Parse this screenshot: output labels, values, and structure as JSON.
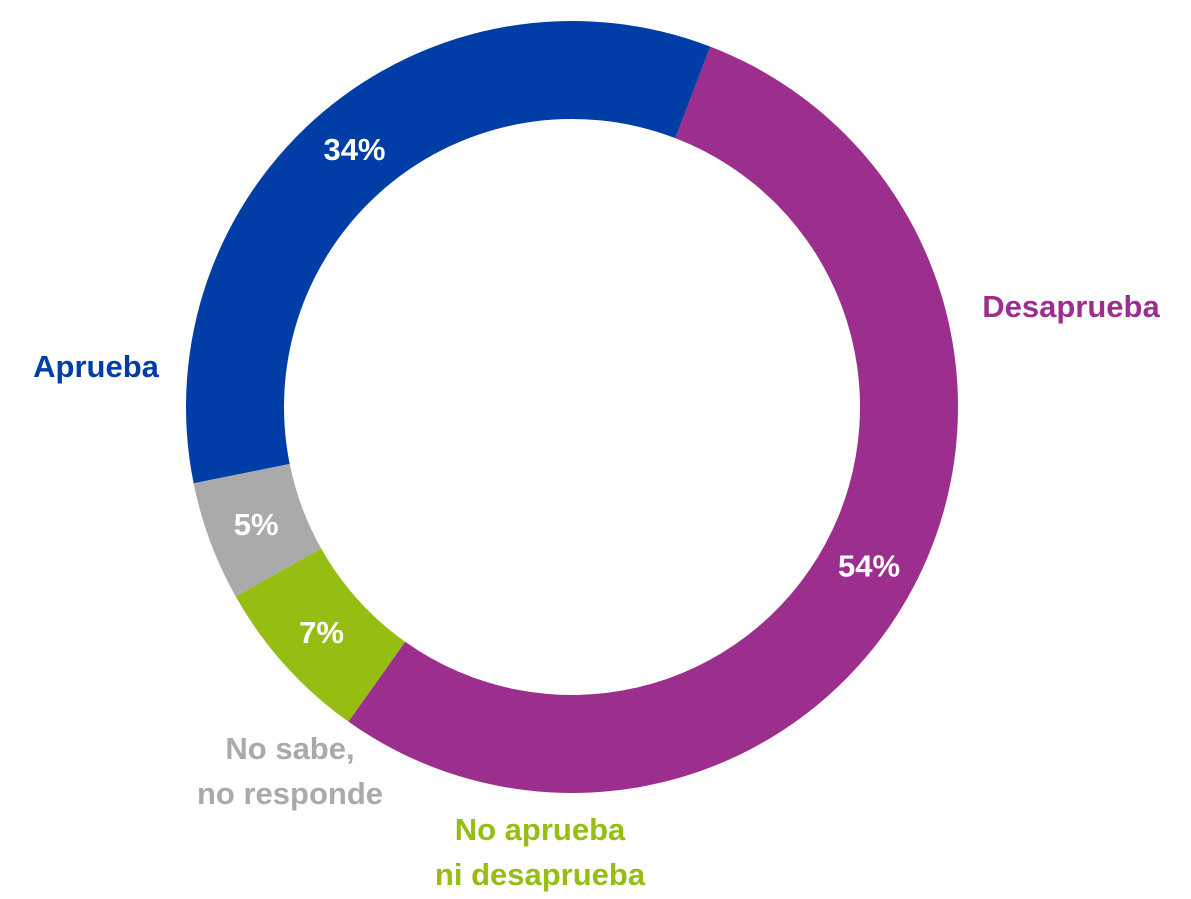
{
  "chart_data": {
    "type": "pie",
    "variant": "donut",
    "title": "",
    "categories": [
      "Desaprueba",
      "No aprueba ni desaprueba",
      "No sabe, no responde",
      "Aprueba"
    ],
    "values": [
      54,
      7,
      5,
      34
    ],
    "value_labels": [
      "54%",
      "7%",
      "5%",
      "34%"
    ],
    "category_labels": [
      [
        "Desaprueba"
      ],
      [
        "No aprueba",
        "ni desaprueba"
      ],
      [
        "No sabe,",
        "no responde"
      ],
      [
        "Aprueba"
      ]
    ],
    "colors": [
      "#9c2f8e",
      "#96bd12",
      "#aaaaaa",
      "#003da6"
    ],
    "legend": "none"
  }
}
